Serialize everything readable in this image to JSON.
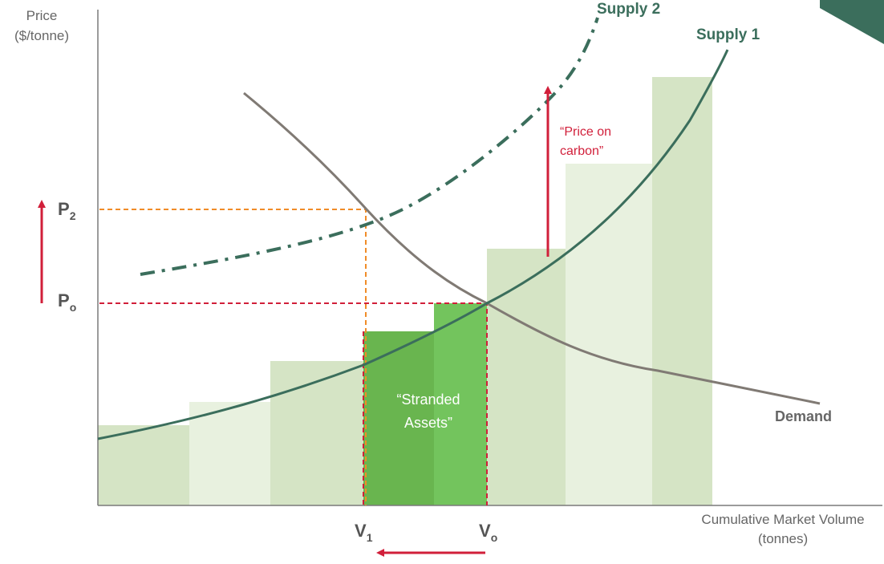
{
  "colors": {
    "bar_light": "#d5e4c5",
    "bar_lighter": "#e8f1df",
    "bar_stranded_dark": "#69b54f",
    "bar_stranded_light": "#73c45d",
    "supply_curve": "#3b6e5c",
    "demand_curve": "#807a74",
    "price_dashes_p2": "#f08c28",
    "price_dashes_p0": "#d11f3a",
    "arrow_red": "#d11f3a",
    "corner_tab": "#3b6e5c"
  },
  "axes": {
    "y_title_line1": "Price",
    "y_title_line2": "($/tonne)",
    "x_title_line1": "Cumulative Market Volume",
    "x_title_line2": "(tonnes)"
  },
  "curves": {
    "supply1": "Supply 1",
    "supply2": "Supply 2",
    "demand": "Demand"
  },
  "ticks": {
    "p2_main": "P",
    "p2_sub": "2",
    "p0_main": "P",
    "p0_sub": "o",
    "v1_main": "V",
    "v1_sub": "1",
    "v0_main": "V",
    "v0_sub": "o"
  },
  "annotations": {
    "price_on_carbon_line1": "“Price on",
    "price_on_carbon_line2": "carbon”",
    "stranded_line1": "“Stranded",
    "stranded_line2": "Assets”"
  },
  "icons": {
    "price_rise_arrow": "arrow-up-icon",
    "volume_fall_arrow": "arrow-left-icon",
    "carbon_shift_arrow": "arrow-up-icon"
  }
}
